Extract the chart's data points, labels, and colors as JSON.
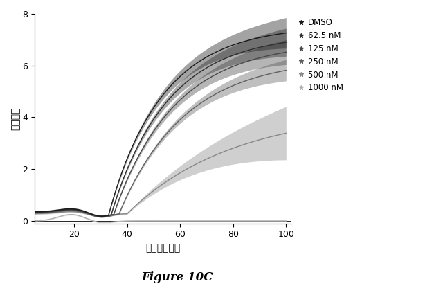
{
  "title": "Figure 10C",
  "xlabel": "時間（時間）",
  "ylabel": "細胞指数",
  "xlim": [
    5,
    102
  ],
  "ylim": [
    -0.1,
    8
  ],
  "xticks": [
    20,
    40,
    60,
    80,
    100
  ],
  "yticks": [
    0,
    2,
    4,
    6,
    8
  ],
  "legend_labels": [
    "DMSO",
    "62.5 nM",
    "125 nM",
    "250 nM",
    "500 nM",
    "1000 nM"
  ],
  "background_color": "#ffffff"
}
